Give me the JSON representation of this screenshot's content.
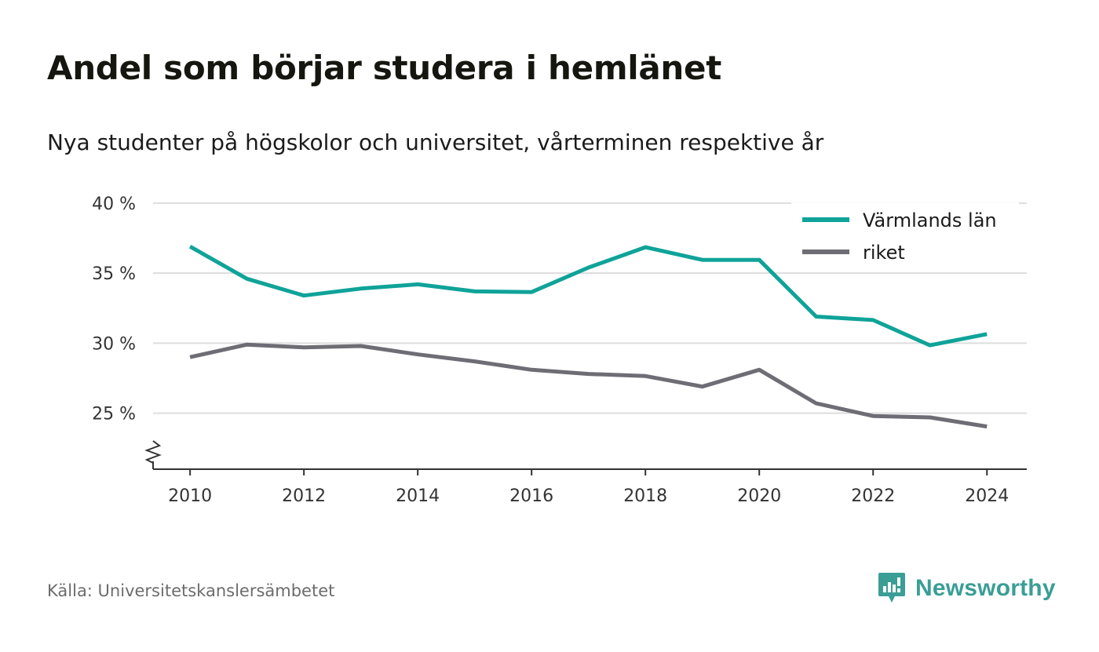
{
  "header": {
    "title": "Andel som börjar studera i hemlänet",
    "subtitle": "Nya studenter på högskolor och universitet, vårterminen respektive år"
  },
  "footer": {
    "source": "Källa: Universitetskanslersämbetet",
    "brand": "Newsworthy",
    "brand_icon": "bar-chart-badge-icon"
  },
  "colors": {
    "varmland": "#0fa399",
    "riket": "#6e6d75",
    "grid": "#dddddd",
    "axis": "#333333",
    "brand": "#3a9e96"
  },
  "chart_data": {
    "type": "line",
    "x": [
      2010,
      2011,
      2012,
      2013,
      2014,
      2015,
      2016,
      2017,
      2018,
      2019,
      2020,
      2021,
      2022,
      2023,
      2024
    ],
    "x_ticks": [
      2010,
      2012,
      2014,
      2016,
      2018,
      2020,
      2022,
      2024
    ],
    "y_ticks": [
      25,
      30,
      35,
      40
    ],
    "y_tick_labels": [
      "25 %",
      "30 %",
      "35 %",
      "40 %"
    ],
    "ylim": [
      21,
      40.5
    ],
    "xlim": [
      2009.35,
      2024.7
    ],
    "axis_break": true,
    "grid": true,
    "legend_position": "top-right",
    "series": [
      {
        "name": "Värmlands län",
        "color": "#0fa399",
        "values": [
          36.9,
          34.6,
          33.4,
          33.9,
          34.2,
          33.7,
          33.65,
          35.4,
          36.85,
          35.95,
          35.95,
          31.9,
          31.65,
          29.85,
          30.65
        ]
      },
      {
        "name": "riket",
        "color": "#6e6d75",
        "values": [
          29.0,
          29.9,
          29.7,
          29.8,
          29.2,
          28.7,
          28.1,
          27.8,
          27.65,
          26.9,
          28.1,
          25.7,
          24.8,
          24.7,
          24.05
        ]
      }
    ]
  }
}
